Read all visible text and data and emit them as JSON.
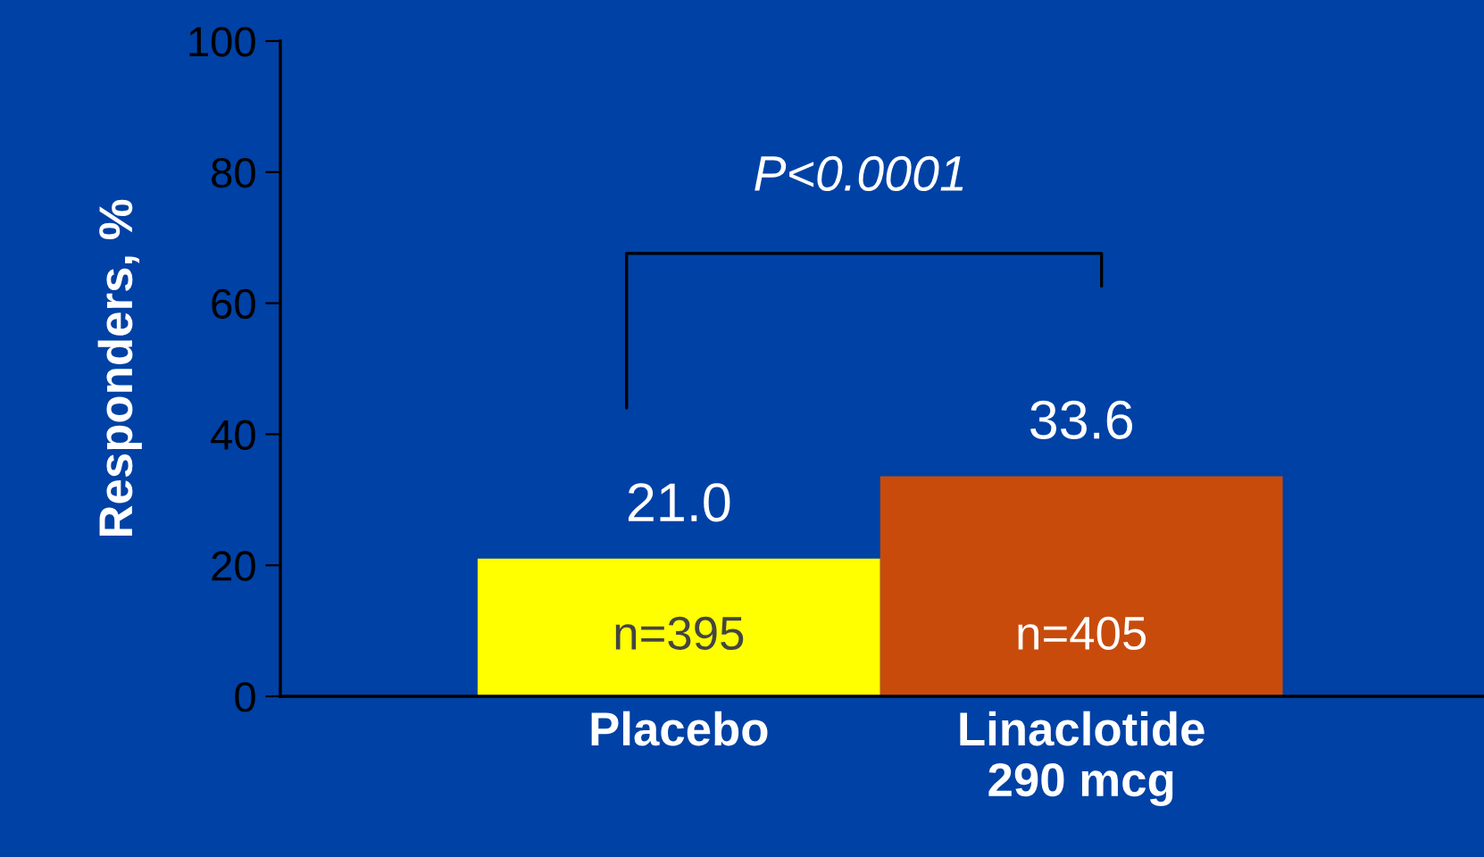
{
  "chart_data": {
    "type": "bar",
    "ylabel": "Responders, %",
    "categories": [
      "Placebo",
      "Linaclotide\n290 mcg"
    ],
    "values": [
      21.0,
      33.6
    ],
    "colors": [
      "#ffff00",
      "#c84b0c"
    ],
    "value_labels": [
      "21.0",
      "33.6"
    ],
    "annotations": [
      "P<0.0001",
      "n=395",
      "n=405"
    ],
    "ylim": [
      0,
      100
    ],
    "yticks": [
      0,
      20,
      40,
      60,
      80,
      100
    ],
    "grid": false,
    "legend": false
  }
}
